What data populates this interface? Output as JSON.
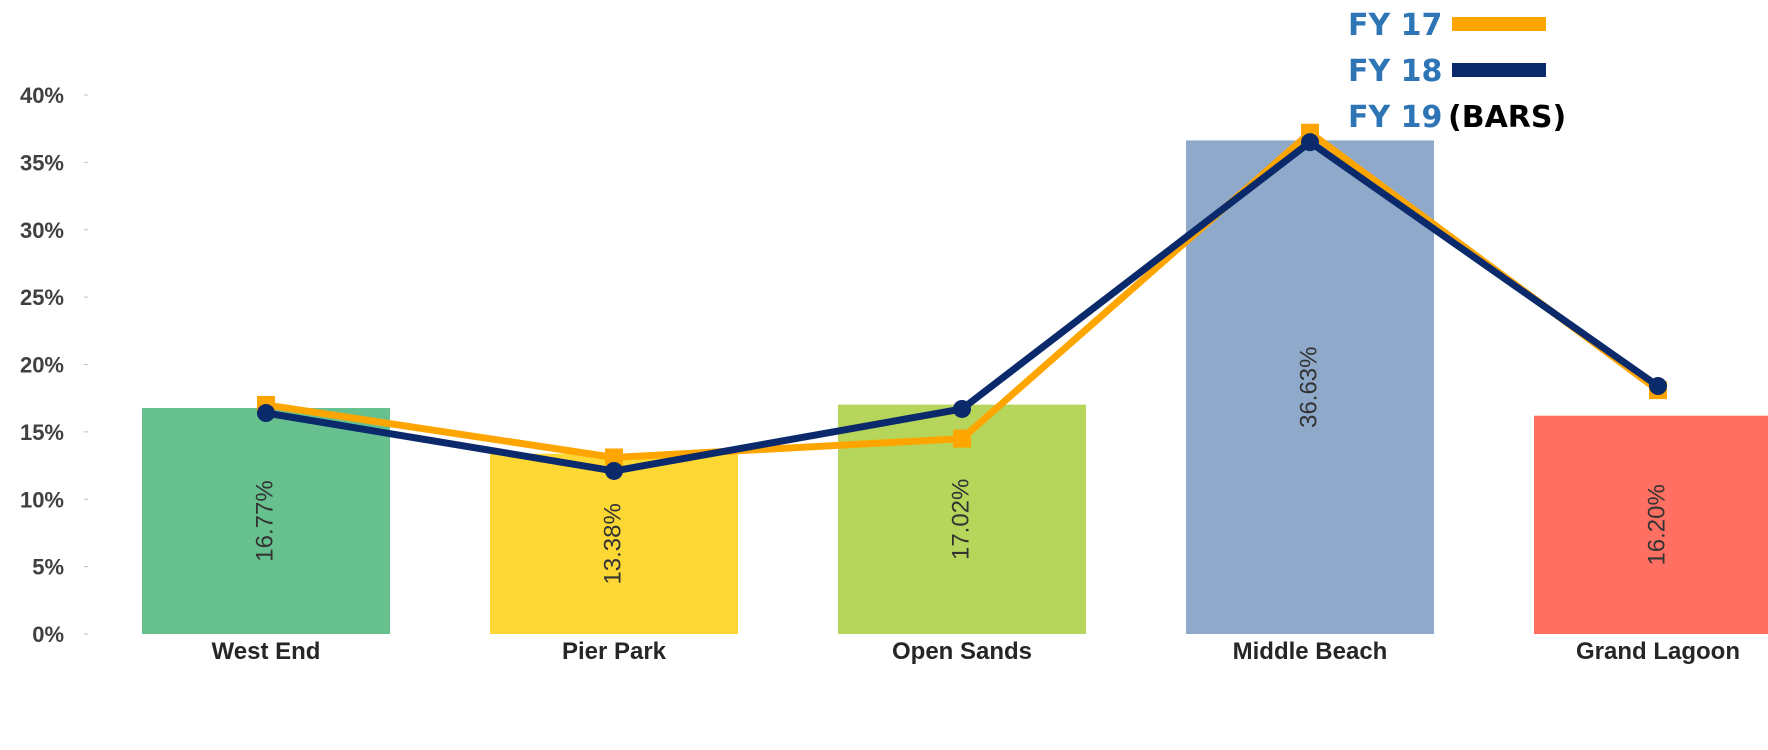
{
  "chart_data": {
    "type": "bar",
    "categories": [
      "West End",
      "Pier Park",
      "Open Sands",
      "Middle Beach",
      "Grand Lagoon"
    ],
    "bar_series": {
      "name": "FY 19",
      "values": [
        16.77,
        13.38,
        17.02,
        36.63,
        16.2
      ],
      "labels": [
        "16.77%",
        "13.38%",
        "17.02%",
        "36.63%",
        "16.20%"
      ],
      "colors": [
        "#66C18F",
        "#FDD835",
        "#B5D55B",
        "#8EA9CA",
        "#FF7063"
      ]
    },
    "line_series": [
      {
        "name": "FY 17",
        "values": [
          17.0,
          13.1,
          14.5,
          37.2,
          18.1
        ],
        "color": "#FFA500",
        "marker": "square"
      },
      {
        "name": "FY 18",
        "values": [
          16.4,
          12.1,
          16.7,
          36.5,
          18.4
        ],
        "color": "#0B2A6B",
        "marker": "circle"
      }
    ],
    "yticks": [
      "0%",
      "5%",
      "10%",
      "15%",
      "20%",
      "25%",
      "30%",
      "35%",
      "40%"
    ],
    "ylim": [
      0,
      40
    ],
    "grid": false,
    "legend": {
      "position": "top-right",
      "items": [
        {
          "label": "FY 17",
          "color": "#FFA500"
        },
        {
          "label": "FY 18",
          "color": "#0B2A6B"
        },
        {
          "label": "FY 19",
          "note": "(BARS)"
        }
      ]
    }
  }
}
